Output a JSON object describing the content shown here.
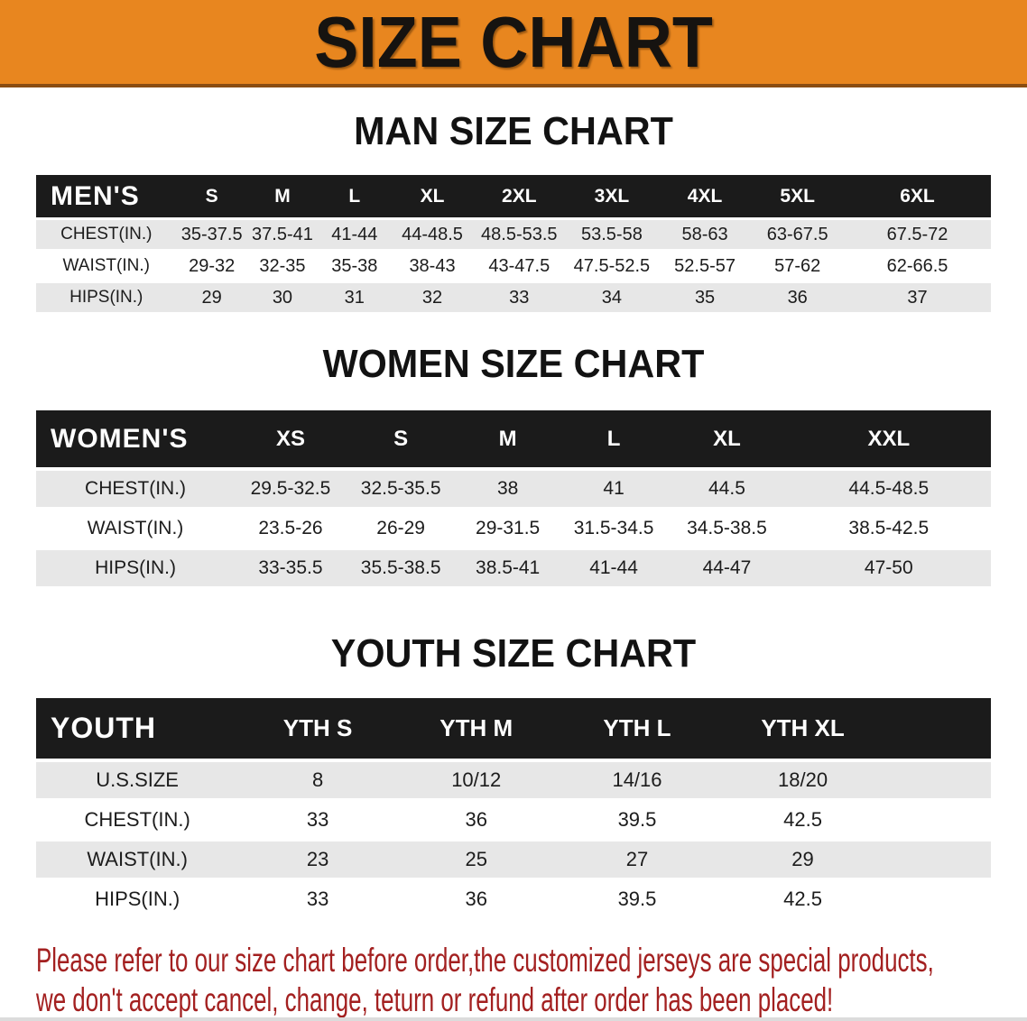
{
  "banner": {
    "title": "SIZE CHART"
  },
  "sections": [
    {
      "heading": "MAN SIZE CHART",
      "table": {
        "header_label": "MEN'S",
        "sizes": [
          "S",
          "M",
          "L",
          "XL",
          "2XL",
          "3XL",
          "4XL",
          "5XL",
          "6XL"
        ],
        "rows": [
          {
            "label": "CHEST(IN.)",
            "values": [
              "35-37.5",
              "37.5-41",
              "41-44",
              "44-48.5",
              "48.5-53.5",
              "53.5-58",
              "58-63",
              "63-67.5",
              "67.5-72"
            ]
          },
          {
            "label": "WAIST(IN.)",
            "values": [
              "29-32",
              "32-35",
              "35-38",
              "38-43",
              "43-47.5",
              "47.5-52.5",
              "52.5-57",
              "57-62",
              "62-66.5"
            ]
          },
          {
            "label": "HIPS(IN.)",
            "values": [
              "29",
              "30",
              "31",
              "32",
              "33",
              "34",
              "35",
              "36",
              "37"
            ]
          }
        ]
      }
    },
    {
      "heading": "WOMEN SIZE CHART",
      "table": {
        "header_label": "WOMEN'S",
        "sizes": [
          "XS",
          "S",
          "M",
          "L",
          "XL",
          "XXL"
        ],
        "rows": [
          {
            "label": "CHEST(IN.)",
            "values": [
              "29.5-32.5",
              "32.5-35.5",
              "38",
              "41",
              "44.5",
              "44.5-48.5"
            ]
          },
          {
            "label": "WAIST(IN.)",
            "values": [
              "23.5-26",
              "26-29",
              "29-31.5",
              "31.5-34.5",
              "34.5-38.5",
              "38.5-42.5"
            ]
          },
          {
            "label": "HIPS(IN.)",
            "values": [
              "33-35.5",
              "35.5-38.5",
              "38.5-41",
              "41-44",
              "44-47",
              "47-50"
            ]
          }
        ]
      }
    },
    {
      "heading": "YOUTH SIZE CHART",
      "table": {
        "header_label": "YOUTH",
        "sizes": [
          "YTH S",
          "YTH M",
          "YTH L",
          "YTH XL"
        ],
        "rows": [
          {
            "label": "U.S.SIZE",
            "values": [
              "8",
              "10/12",
              "14/16",
              "18/20"
            ]
          },
          {
            "label": "CHEST(IN.)",
            "values": [
              "33",
              "36",
              "39.5",
              "42.5"
            ]
          },
          {
            "label": "WAIST(IN.)",
            "values": [
              "23",
              "25",
              "27",
              "29"
            ]
          },
          {
            "label": "HIPS(IN.)",
            "values": [
              "33",
              "36",
              "39.5",
              "42.5"
            ]
          }
        ]
      }
    }
  ],
  "footnote": {
    "lines": [
      "Please refer to our size chart before order,the customized jerseys are special products,",
      "we don't accept cancel, change, teturn or refund after order has been placed!"
    ]
  },
  "theme": {
    "banner_bg": "#E8861F",
    "banner_border": "#8A4D12",
    "banner_text": "#161310",
    "heading_text": "#121212",
    "header_row_bg": "#1B1B1B",
    "header_row_text": "#FFFFFF",
    "stripe_bg": "#E7E7E7",
    "table_text": "#1C1C1C",
    "footnote_red": "#A32020"
  }
}
